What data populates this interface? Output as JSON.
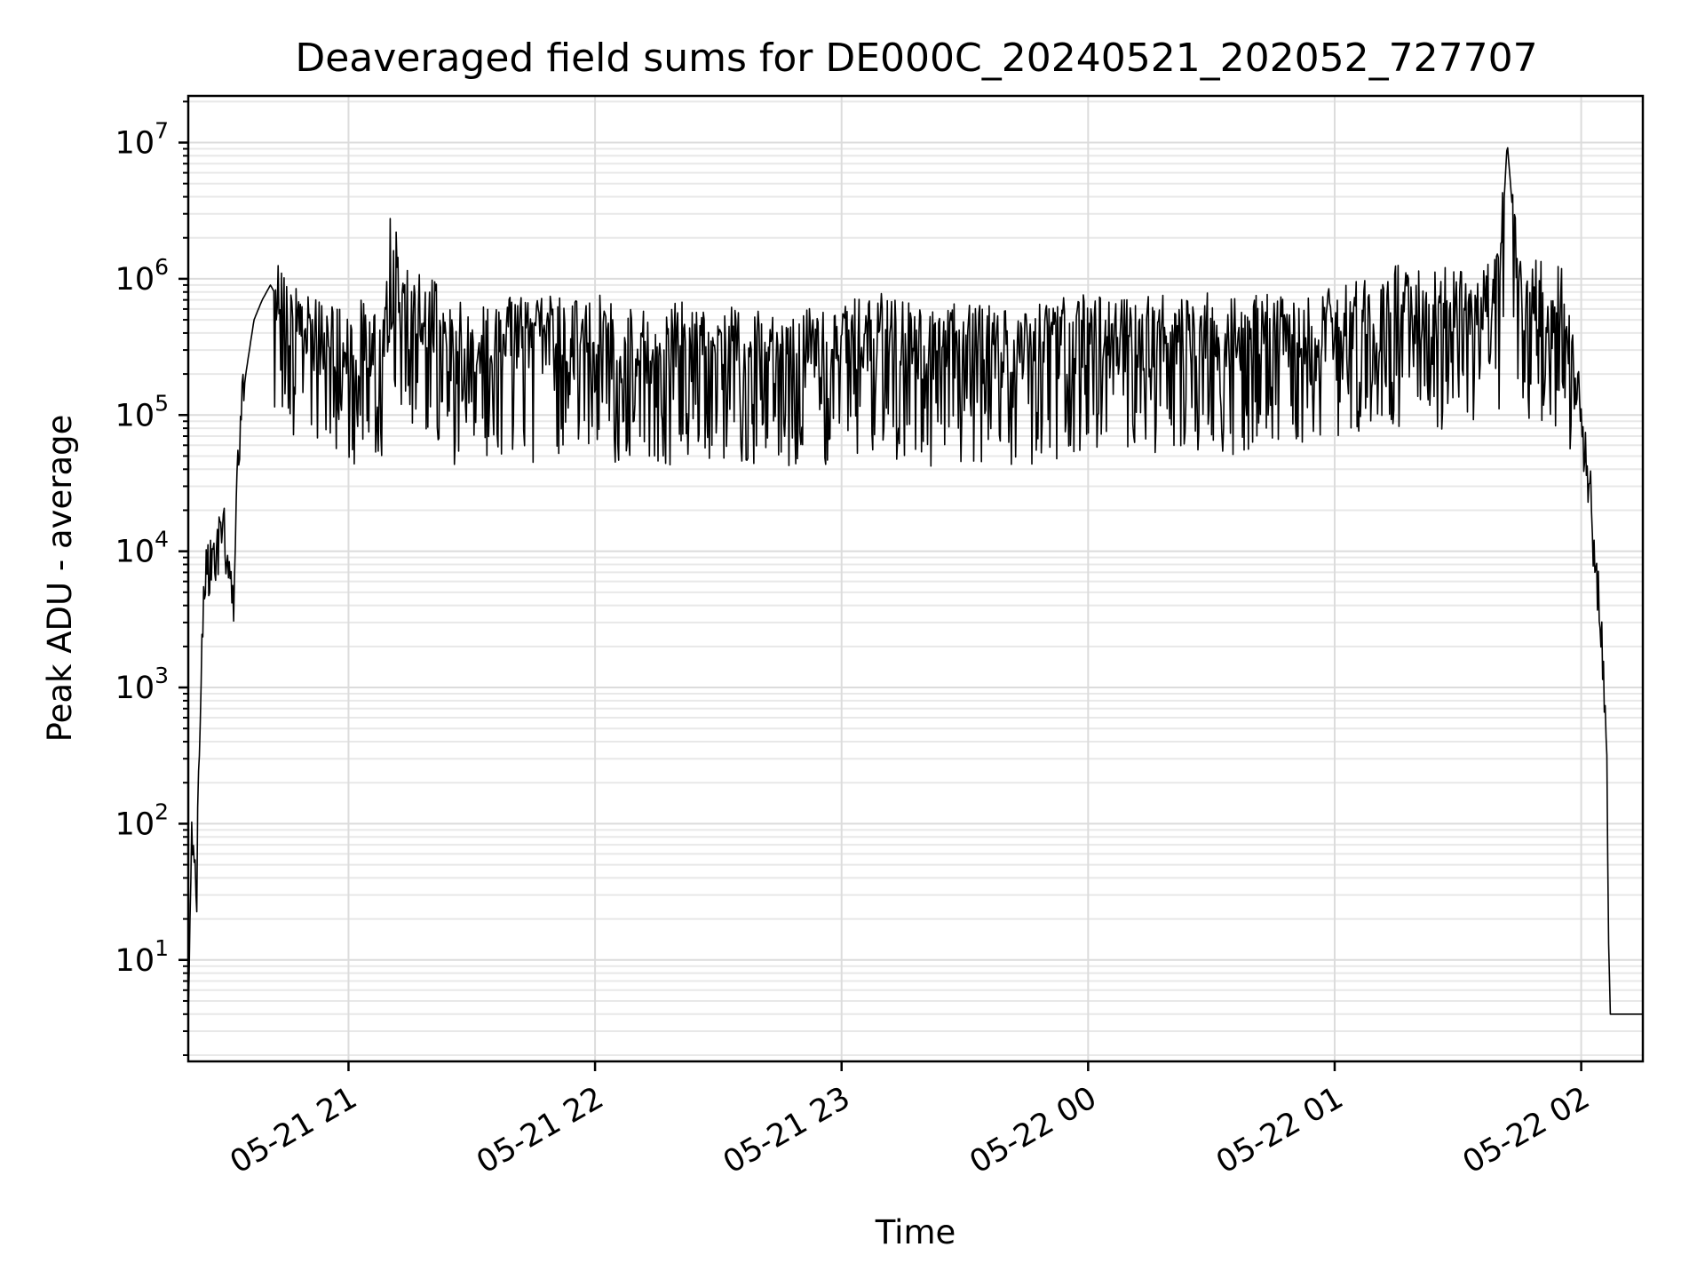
{
  "chart_data": {
    "type": "line",
    "title": "Deaveraged field sums for DE000C_20240521_202052_727707",
    "xlabel": "Time",
    "ylabel": "Peak ADU - average",
    "yscale": "log",
    "xlim": [
      "2024-05-21 20:21",
      "2024-05-22 02:15"
    ],
    "ylim": [
      1.8,
      22000000
    ],
    "grid": true,
    "line_color": "#000000",
    "x_ticks": [
      "05-21 21",
      "05-21 22",
      "05-21 23",
      "05-22 00",
      "05-22 01",
      "05-22 02"
    ],
    "y_ticks": [
      {
        "base": "10",
        "exp": "1",
        "value": 10
      },
      {
        "base": "10",
        "exp": "2",
        "value": 100
      },
      {
        "base": "10",
        "exp": "3",
        "value": 1000
      },
      {
        "base": "10",
        "exp": "4",
        "value": 10000
      },
      {
        "base": "10",
        "exp": "5",
        "value": 100000
      },
      {
        "base": "10",
        "exp": "6",
        "value": 1000000
      },
      {
        "base": "10",
        "exp": "7",
        "value": 10000000
      }
    ],
    "series": [
      {
        "x": [
          "2024-05-21 20:21",
          "2024-05-21 20:22",
          "2024-05-21 20:23",
          "2024-05-21 20:24",
          "2024-05-21 20:25",
          "2024-05-21 20:26",
          "2024-05-21 20:28",
          "2024-05-21 20:30",
          "2024-05-21 20:32",
          "2024-05-21 20:33",
          "2024-05-21 20:35",
          "2024-05-21 20:37",
          "2024-05-21 20:39",
          "2024-05-21 20:41",
          "2024-05-21 20:43",
          "2024-05-21 20:45",
          "2024-05-21 20:47",
          "2024-05-21 20:50",
          "2024-05-21 20:55",
          "2024-05-21 21:00",
          "2024-05-21 21:05",
          "2024-05-21 21:08",
          "2024-05-21 21:10",
          "2024-05-21 21:15",
          "2024-05-21 21:20",
          "2024-05-21 21:25",
          "2024-05-21 21:30",
          "2024-05-21 21:35",
          "2024-05-21 21:40",
          "2024-05-21 21:45",
          "2024-05-21 21:50",
          "2024-05-21 21:55",
          "2024-05-21 22:00",
          "2024-05-21 22:10",
          "2024-05-21 22:20",
          "2024-05-21 22:30",
          "2024-05-21 22:40",
          "2024-05-21 22:50",
          "2024-05-21 23:00",
          "2024-05-21 23:10",
          "2024-05-21 23:20",
          "2024-05-21 23:30",
          "2024-05-21 23:40",
          "2024-05-21 23:50",
          "2024-05-22 00:00",
          "2024-05-22 00:10",
          "2024-05-22 00:20",
          "2024-05-22 00:30",
          "2024-05-22 00:40",
          "2024-05-22 00:50",
          "2024-05-22 01:00",
          "2024-05-22 01:10",
          "2024-05-22 01:15",
          "2024-05-22 01:20",
          "2024-05-22 01:25",
          "2024-05-22 01:30",
          "2024-05-22 01:35",
          "2024-05-22 01:40",
          "2024-05-22 01:42",
          "2024-05-22 01:45",
          "2024-05-22 01:50",
          "2024-05-22 01:53",
          "2024-05-22 01:55",
          "2024-05-22 01:57",
          "2024-05-22 02:00",
          "2024-05-22 02:02",
          "2024-05-22 02:04",
          "2024-05-22 02:05",
          "2024-05-22 02:06",
          "2024-05-22 02:07",
          "2024-05-22 02:10",
          "2024-05-22 02:15"
        ],
        "y": [
          4,
          110,
          30,
          700,
          6000,
          8000,
          10000,
          12000,
          4000,
          60000,
          200000,
          500000,
          700000,
          900000,
          700000,
          600000,
          500000,
          400000,
          350000,
          300000,
          400000,
          250000,
          1800000,
          500000,
          600000,
          300000,
          400000,
          350000,
          400000,
          350000,
          400000,
          350000,
          400000,
          300000,
          350000,
          300000,
          350000,
          300000,
          350000,
          400000,
          300000,
          350000,
          300000,
          350000,
          400000,
          350000,
          400000,
          400000,
          400000,
          450000,
          500000,
          500000,
          650000,
          600000,
          600000,
          700000,
          700000,
          800000,
          10000000,
          700000,
          700000,
          600000,
          700000,
          300000,
          100000,
          30000,
          5000,
          2000,
          800,
          4,
          4,
          4
        ]
      }
    ]
  }
}
